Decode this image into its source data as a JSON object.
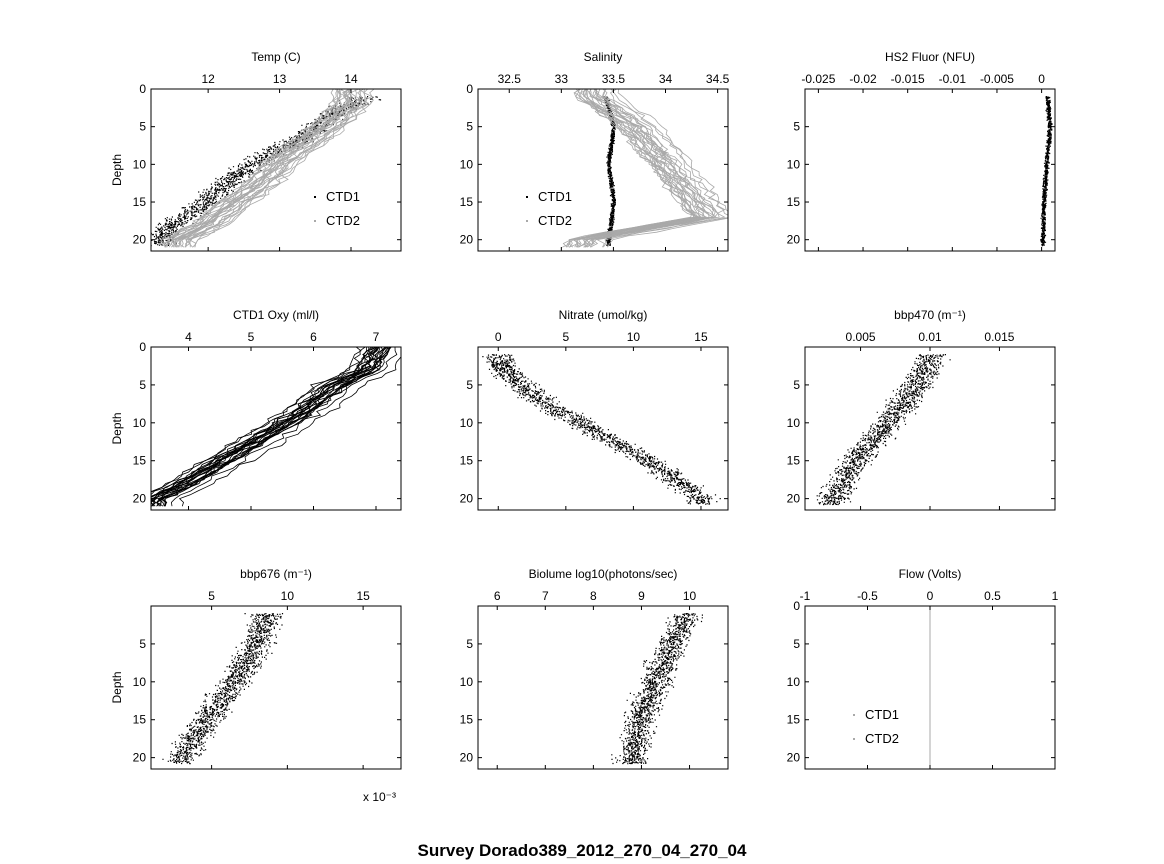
{
  "figure_title": "Survey Dorado389_2012_270_04_270_04",
  "chart_data": [
    {
      "type": "scatter",
      "title": "Temp (C)",
      "ylabel": "Depth",
      "xlim": [
        11.2,
        14.7
      ],
      "ylim": [
        21.5,
        0
      ],
      "xticks": [
        12,
        13,
        14
      ],
      "yticks": [
        0,
        5,
        10,
        15,
        20
      ],
      "legend": [
        "CTD1",
        "CTD2"
      ],
      "legend_position": "lower-right",
      "series": [
        {
          "name": "CTD1",
          "color": "#000000",
          "style": "dots",
          "points": [
            [
              11.3,
              20
            ],
            [
              11.5,
              18
            ],
            [
              11.8,
              16
            ],
            [
              12.2,
              13
            ],
            [
              12.6,
              10
            ],
            [
              13.0,
              8
            ],
            [
              13.4,
              6
            ],
            [
              13.8,
              3
            ],
            [
              14.2,
              1
            ],
            [
              14.6,
              0
            ]
          ]
        },
        {
          "name": "CTD2",
          "color": "#a9a9a9",
          "style": "profiles",
          "points": [
            [
              11.6,
              20
            ],
            [
              12.0,
              18
            ],
            [
              12.4,
              15
            ],
            [
              12.8,
              12
            ],
            [
              13.1,
              9
            ],
            [
              13.4,
              7
            ],
            [
              13.8,
              4
            ],
            [
              14.0,
              2
            ]
          ]
        }
      ]
    },
    {
      "type": "scatter",
      "title": "Salinity",
      "xlim": [
        32.2,
        34.6
      ],
      "ylim": [
        21.5,
        0
      ],
      "xticks": [
        32.5,
        33,
        33.5,
        34,
        34.5
      ],
      "yticks": [
        0,
        5,
        10,
        15,
        20
      ],
      "legend": [
        "CTD1",
        "CTD2"
      ],
      "legend_position": "lower-left",
      "series": [
        {
          "name": "CTD1",
          "color": "#000000",
          "style": "band",
          "points": [
            [
              33.4,
              0
            ],
            [
              33.5,
              5
            ],
            [
              33.45,
              10
            ],
            [
              33.5,
              15
            ],
            [
              33.45,
              20
            ]
          ]
        },
        {
          "name": "CTD2",
          "color": "#a9a9a9",
          "style": "profiles",
          "points": [
            [
              33.3,
              1
            ],
            [
              33.7,
              5
            ],
            [
              34.0,
              10
            ],
            [
              34.4,
              17
            ],
            [
              33.2,
              20
            ]
          ]
        }
      ]
    },
    {
      "type": "scatter",
      "title": "HS2 Fluor (NFU)",
      "xlim": [
        -0.0265,
        0.0015
      ],
      "ylim": [
        21.5,
        0
      ],
      "xticks": [
        -0.025,
        -0.02,
        -0.015,
        -0.01,
        -0.005,
        0
      ],
      "yticks": [
        5,
        10,
        15,
        20
      ],
      "series": [
        {
          "name": "",
          "color": "#000000",
          "style": "band",
          "points": [
            [
              0.0005,
              0
            ],
            [
              0.0009,
              5
            ],
            [
              0.0005,
              10
            ],
            [
              0.0002,
              15
            ],
            [
              0.0001,
              20
            ]
          ]
        }
      ]
    },
    {
      "type": "scatter",
      "title": "CTD1 Oxy (ml/l)",
      "ylabel": "Depth",
      "xlim": [
        3.4,
        7.4
      ],
      "ylim": [
        21.5,
        0
      ],
      "xticks": [
        4,
        5,
        6,
        7
      ],
      "yticks": [
        0,
        5,
        10,
        15,
        20
      ],
      "series": [
        {
          "name": "",
          "color": "#000000",
          "style": "profiles",
          "points": [
            [
              3.5,
              20
            ],
            [
              4.0,
              18
            ],
            [
              4.6,
              15
            ],
            [
              5.2,
              12
            ],
            [
              5.8,
              9
            ],
            [
              6.4,
              5
            ],
            [
              6.9,
              3
            ],
            [
              7.1,
              0
            ]
          ]
        }
      ]
    },
    {
      "type": "scatter",
      "title": "Nitrate (umol/kg)",
      "xlim": [
        -1.5,
        17
      ],
      "ylim": [
        21.5,
        0
      ],
      "xticks": [
        0,
        5,
        10,
        15
      ],
      "yticks": [
        5,
        10,
        15,
        20
      ],
      "series": [
        {
          "name": "",
          "color": "#000000",
          "style": "dots",
          "points": [
            [
              0,
              2
            ],
            [
              1,
              4
            ],
            [
              3,
              7
            ],
            [
              6,
              10
            ],
            [
              9,
              13
            ],
            [
              12,
              16
            ],
            [
              15,
              20
            ]
          ]
        }
      ]
    },
    {
      "type": "scatter",
      "title": "bbp470 (m⁻¹)",
      "xlim": [
        0.001,
        0.019
      ],
      "ylim": [
        21.5,
        0
      ],
      "xticks": [
        0.005,
        0.01,
        0.015
      ],
      "yticks": [
        5,
        10,
        15,
        20
      ],
      "series": [
        {
          "name": "",
          "color": "#000000",
          "style": "dots",
          "points": [
            [
              0.01,
              2
            ],
            [
              0.009,
              5
            ],
            [
              0.007,
              10
            ],
            [
              0.005,
              14
            ],
            [
              0.003,
              20
            ]
          ]
        }
      ]
    },
    {
      "type": "scatter",
      "title": "bbp676 (m⁻¹)",
      "ylabel": "Depth",
      "xlim": [
        0.001,
        0.0175
      ],
      "ylim": [
        21.5,
        0
      ],
      "xticks": [
        0.005,
        0.01,
        0.015
      ],
      "xticklabels": [
        "5",
        "10",
        "15"
      ],
      "xscale_label": "x 10⁻³",
      "yticks": [
        5,
        10,
        15,
        20
      ],
      "series": [
        {
          "name": "",
          "color": "#000000",
          "style": "dots",
          "points": [
            [
              0.0085,
              2
            ],
            [
              0.008,
              5
            ],
            [
              0.0065,
              10
            ],
            [
              0.005,
              14
            ],
            [
              0.003,
              20
            ]
          ]
        }
      ]
    },
    {
      "type": "scatter",
      "title": "Biolume log10(photons/sec)",
      "xlim": [
        5.6,
        10.8
      ],
      "ylim": [
        21.5,
        0
      ],
      "xticks": [
        6,
        7,
        8,
        9,
        10
      ],
      "yticks": [
        5,
        10,
        15,
        20
      ],
      "series": [
        {
          "name": "",
          "color": "#000000",
          "style": "dots",
          "points": [
            [
              9.9,
              2
            ],
            [
              9.6,
              5
            ],
            [
              9.3,
              10
            ],
            [
              9.0,
              14
            ],
            [
              8.8,
              20
            ]
          ]
        }
      ]
    },
    {
      "type": "line",
      "title": "Flow (Volts)",
      "xlim": [
        -1,
        1
      ],
      "ylim": [
        21.5,
        0
      ],
      "xticks": [
        -1,
        -0.5,
        0,
        0.5,
        1
      ],
      "yticks": [
        0,
        5,
        10,
        15,
        20
      ],
      "legend": [
        "CTD1",
        "CTD2"
      ],
      "legend_position": "lower-left",
      "series": [
        {
          "name": "",
          "color": "#a9a9a9",
          "style": "line",
          "points": [
            [
              0,
              0
            ],
            [
              0,
              21.5
            ]
          ]
        }
      ]
    }
  ]
}
